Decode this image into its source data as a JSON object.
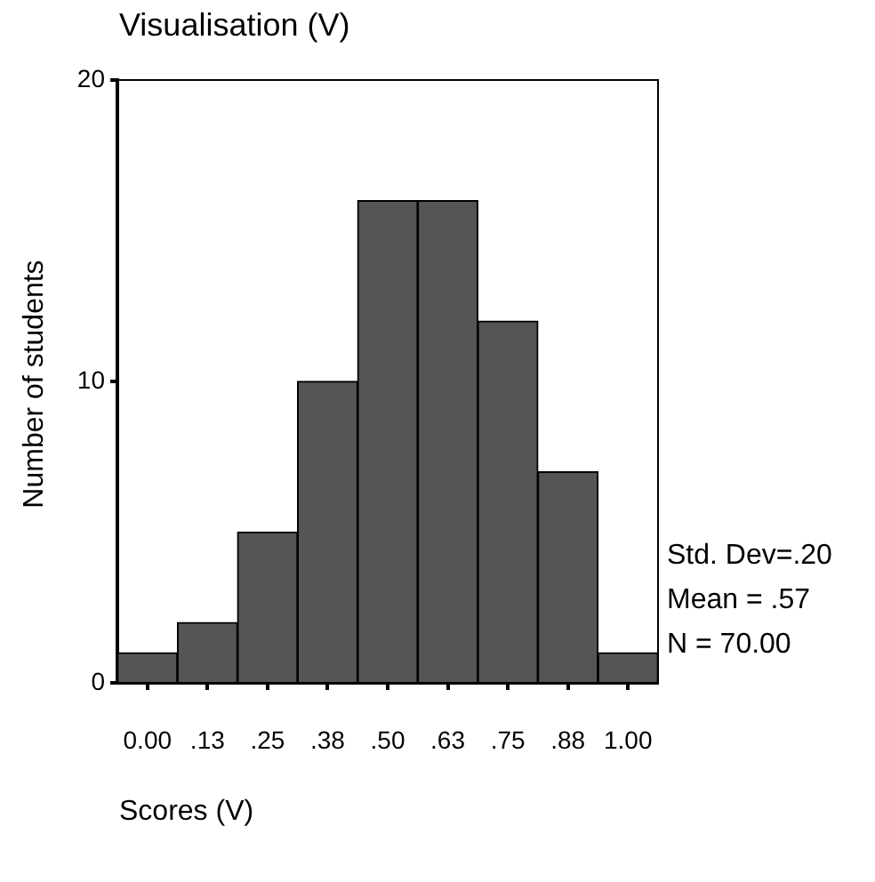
{
  "chart_data": {
    "type": "histogram",
    "title": "Visualisation (V)",
    "xlabel": "Scores (V)",
    "ylabel": "Number of students",
    "bins": [
      -0.0625,
      0.0625,
      0.1875,
      0.3125,
      0.4375,
      0.5625,
      0.6875,
      0.8125,
      0.9375,
      1.0625
    ],
    "values": [
      1,
      2,
      5,
      10,
      16,
      16,
      12,
      7,
      1
    ],
    "color": "#555555",
    "xlim": [
      -0.0625,
      1.0625
    ],
    "xticks": [
      {
        "value": 0,
        "label": "0.00"
      },
      {
        "value": 0.125,
        "label": ".13"
      },
      {
        "value": 0.25,
        "label": ".25"
      },
      {
        "value": 0.375,
        "label": ".38"
      },
      {
        "value": 0.5,
        "label": ".50"
      },
      {
        "value": 0.625,
        "label": ".63"
      },
      {
        "value": 0.75,
        "label": ".75"
      },
      {
        "value": 0.875,
        "label": ".88"
      },
      {
        "value": 1,
        "label": "1.00"
      }
    ],
    "ylim": [
      0,
      20
    ],
    "yticks": [
      0,
      10,
      20
    ],
    "grid": false,
    "legend": false,
    "annotations": [
      "Std. Dev=.20",
      "Mean = .57",
      "N = 70.00"
    ]
  }
}
